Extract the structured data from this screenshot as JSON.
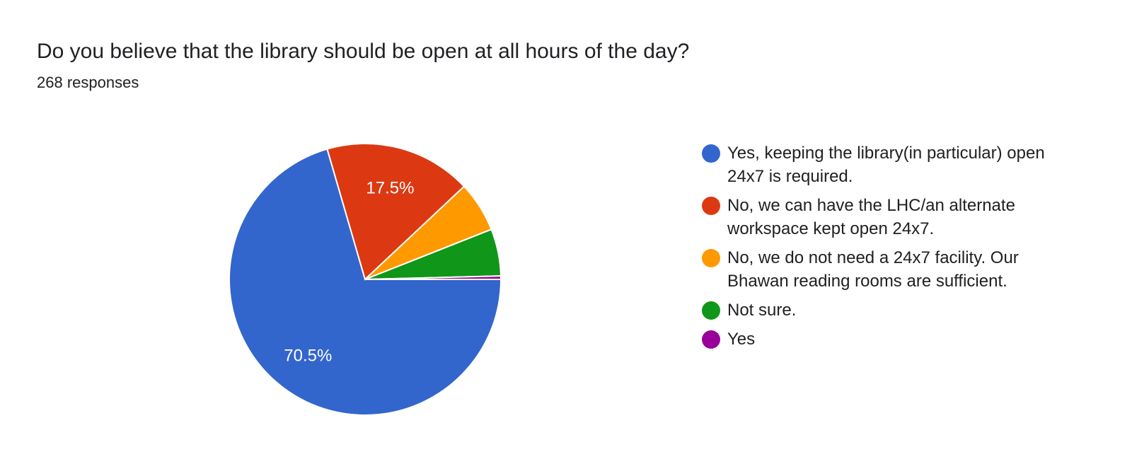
{
  "title": "Do you believe that the library should be open at all hours of the day?",
  "subtitle": "268 responses",
  "chart_data": {
    "type": "pie",
    "title": "Do you believe that the library should be open at all hours of the day?",
    "total_responses": 268,
    "legend_position": "right",
    "series": [
      {
        "name": "Yes, keeping the library(in particular) open 24x7 is required.",
        "percent": 70.5,
        "label": "70.5%",
        "color": "#3366cc"
      },
      {
        "name": "No, we can have the LHC/an alternate workspace kept open 24x7.",
        "percent": 17.5,
        "label": "17.5%",
        "color": "#dc3912"
      },
      {
        "name": "No, we do not need a 24x7 facility. Our Bhawan reading rooms are sufficient.",
        "percent": 6.0,
        "label": "",
        "color": "#ff9900"
      },
      {
        "name": "Not sure.",
        "percent": 5.6,
        "label": "",
        "color": "#109618"
      },
      {
        "name": "Yes",
        "percent": 0.4,
        "label": "",
        "color": "#990099"
      }
    ]
  }
}
